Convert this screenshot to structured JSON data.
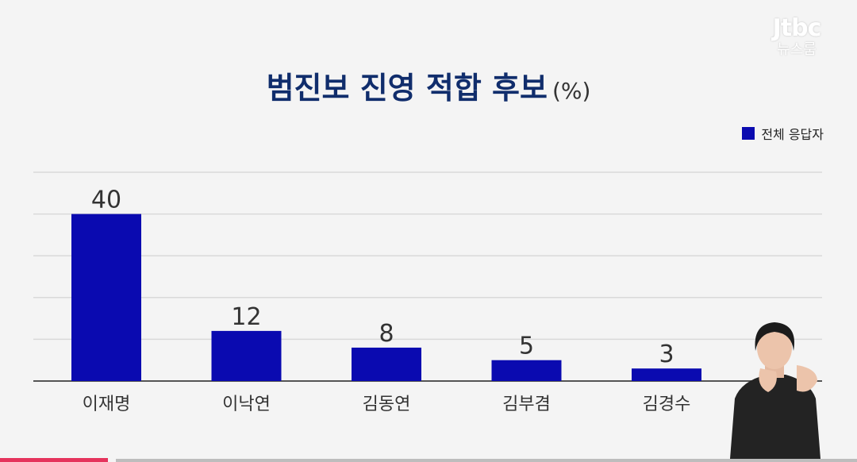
{
  "logo": {
    "line1": "Jtbc",
    "line2": "뉴스룸"
  },
  "title": "범진보 진영 적합 후보",
  "title_unit": "(%)",
  "legend": {
    "label": "전체 응답자",
    "color": "#0a0ab0"
  },
  "chart_data": {
    "type": "bar",
    "title": "범진보 진영 적합 후보",
    "categories": [
      "이재명",
      "이낙연",
      "김동연",
      "김부겸",
      "김경수"
    ],
    "series": [
      {
        "name": "전체 응답자",
        "values": [
          40,
          12,
          8,
          5,
          3
        ],
        "color": "#0a0ab0"
      }
    ],
    "ylim": [
      0,
      50
    ],
    "grid": true,
    "legend_position": "top-right"
  }
}
